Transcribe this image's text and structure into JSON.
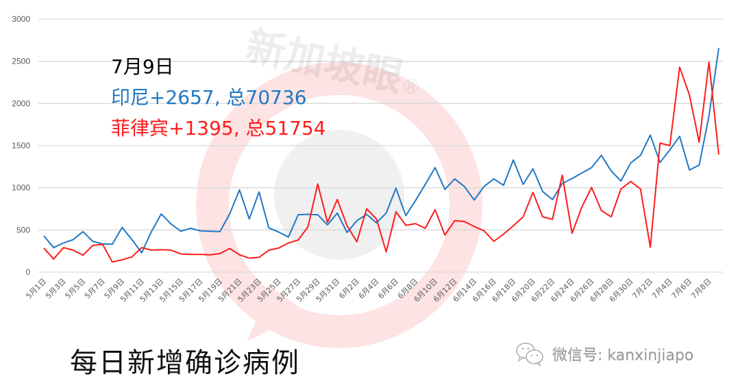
{
  "watermark": {
    "text": "新加坡眼",
    "mark": "®"
  },
  "annotation": {
    "date": "7月9日",
    "series1": "印尼+2657, 总70736",
    "series2": "菲律宾+1395, 总51754"
  },
  "bottom_title": "每日新增确诊病例",
  "footer": {
    "icon": "wechat-icon",
    "label": "微信号: kanxinjiapo"
  },
  "colors": {
    "indonesia": "#1f77c4",
    "philippines": "#ff1a1a",
    "grid": "#d9d9d9",
    "tick": "#595959"
  },
  "chart_data": {
    "type": "line",
    "title": "每日新增确诊病例",
    "xlabel": "",
    "ylabel": "",
    "ylim": [
      0,
      3000
    ],
    "yticks": [
      0,
      500,
      1000,
      1500,
      2000,
      2500,
      3000
    ],
    "grid": true,
    "legend": "annotation text top-left",
    "x": [
      "5月1日",
      "5月2日",
      "5月3日",
      "5月4日",
      "5月5日",
      "5月6日",
      "5月7日",
      "5月8日",
      "5月9日",
      "5月10日",
      "5月11日",
      "5月12日",
      "5月13日",
      "5月14日",
      "5月15日",
      "5月16日",
      "5月17日",
      "5月18日",
      "5月19日",
      "5月20日",
      "5月21日",
      "5月22日",
      "5月23日",
      "5月24日",
      "5月25日",
      "5月26日",
      "5月27日",
      "5月28日",
      "5月29日",
      "5月30日",
      "5月31日",
      "6月1日",
      "6月2日",
      "6月3日",
      "6月4日",
      "6月5日",
      "6月6日",
      "6月7日",
      "6月8日",
      "6月9日",
      "6月10日",
      "6月11日",
      "6月12日",
      "6月13日",
      "6月14日",
      "6月15日",
      "6月16日",
      "6月17日",
      "6月18日",
      "6月19日",
      "6月20日",
      "6月21日",
      "6月22日",
      "6月23日",
      "6月24日",
      "6月25日",
      "6月26日",
      "6月27日",
      "6月28日",
      "6月29日",
      "6月30日",
      "7月1日",
      "7月2日",
      "7月3日",
      "7月4日",
      "7月5日",
      "7月6日",
      "7月7日",
      "7月8日",
      "7月9日"
    ],
    "xtick_labels": [
      "5月1日",
      "5月3日",
      "5月5日",
      "5月7日",
      "5月9日",
      "5月11日",
      "5月13日",
      "5月15日",
      "5月17日",
      "5月19日",
      "5月21日",
      "5月23日",
      "5月25日",
      "5月27日",
      "5月29日",
      "5月31日",
      "6月2日",
      "6月4日",
      "6月6日",
      "6月8日",
      "6月10日",
      "6月12日",
      "6月14日",
      "6月16日",
      "6月18日",
      "6月20日",
      "6月22日",
      "6月24日",
      "6月26日",
      "6月28日",
      "6月30日",
      "7月2日",
      "7月4日",
      "7月6日",
      "7月8日"
    ],
    "series": [
      {
        "name": "印尼",
        "color": "#1f77c4",
        "values": [
          430,
          290,
          345,
          385,
          480,
          365,
          335,
          330,
          530,
          385,
          230,
          480,
          690,
          570,
          485,
          520,
          490,
          485,
          480,
          690,
          975,
          630,
          950,
          525,
          475,
          415,
          680,
          685,
          680,
          560,
          700,
          470,
          610,
          685,
          585,
          700,
          995,
          670,
          850,
          1040,
          1240,
          980,
          1105,
          1015,
          855,
          1015,
          1105,
          1030,
          1330,
          1040,
          1225,
          955,
          860,
          1050,
          1110,
          1175,
          1240,
          1385,
          1200,
          1080,
          1295,
          1385,
          1625,
          1300,
          1450,
          1610,
          1210,
          1270,
          1850,
          2657
        ]
      },
      {
        "name": "菲律宾",
        "color": "#ff1a1a",
        "values": [
          285,
          155,
          290,
          260,
          200,
          315,
          330,
          120,
          145,
          180,
          290,
          260,
          265,
          260,
          215,
          210,
          210,
          205,
          220,
          280,
          205,
          165,
          175,
          260,
          285,
          345,
          380,
          535,
          1045,
          590,
          860,
          550,
          360,
          750,
          630,
          240,
          715,
          555,
          575,
          520,
          740,
          440,
          610,
          600,
          540,
          490,
          365,
          450,
          550,
          655,
          945,
          655,
          625,
          1150,
          460,
          770,
          1005,
          730,
          655,
          985,
          1075,
          985,
          295,
          1530,
          1500,
          2430,
          2100,
          1540,
          2490,
          1395
        ]
      }
    ]
  }
}
